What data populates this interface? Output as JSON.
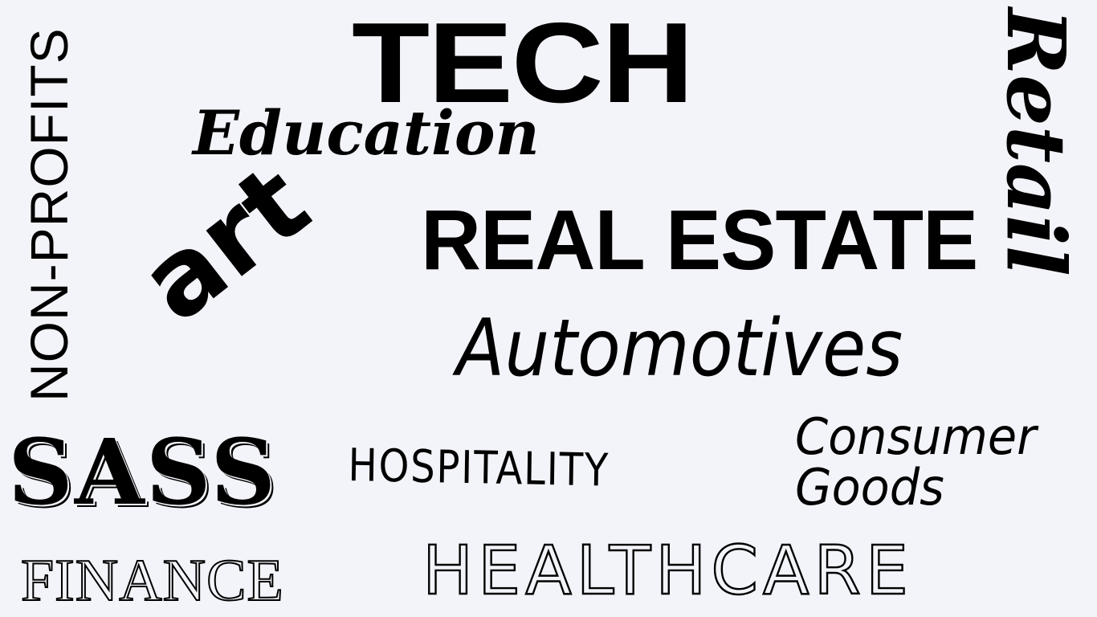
{
  "background_color": "#f3f4f9",
  "text_color": "#000000",
  "words": {
    "tech": "TECH",
    "education": "Education",
    "real_estate": "REAL ESTATE",
    "automotives": "Automotives",
    "art": "art",
    "non_profits": "NON-PROFITS",
    "retail": "Retail",
    "sass": "SASS",
    "finance": "FINANCE",
    "hospitality": "HOSPITALITY",
    "consumer_goods_line1": "Consumer",
    "consumer_goods_line2": "Goods",
    "healthcare": "HEALTHCARE"
  }
}
